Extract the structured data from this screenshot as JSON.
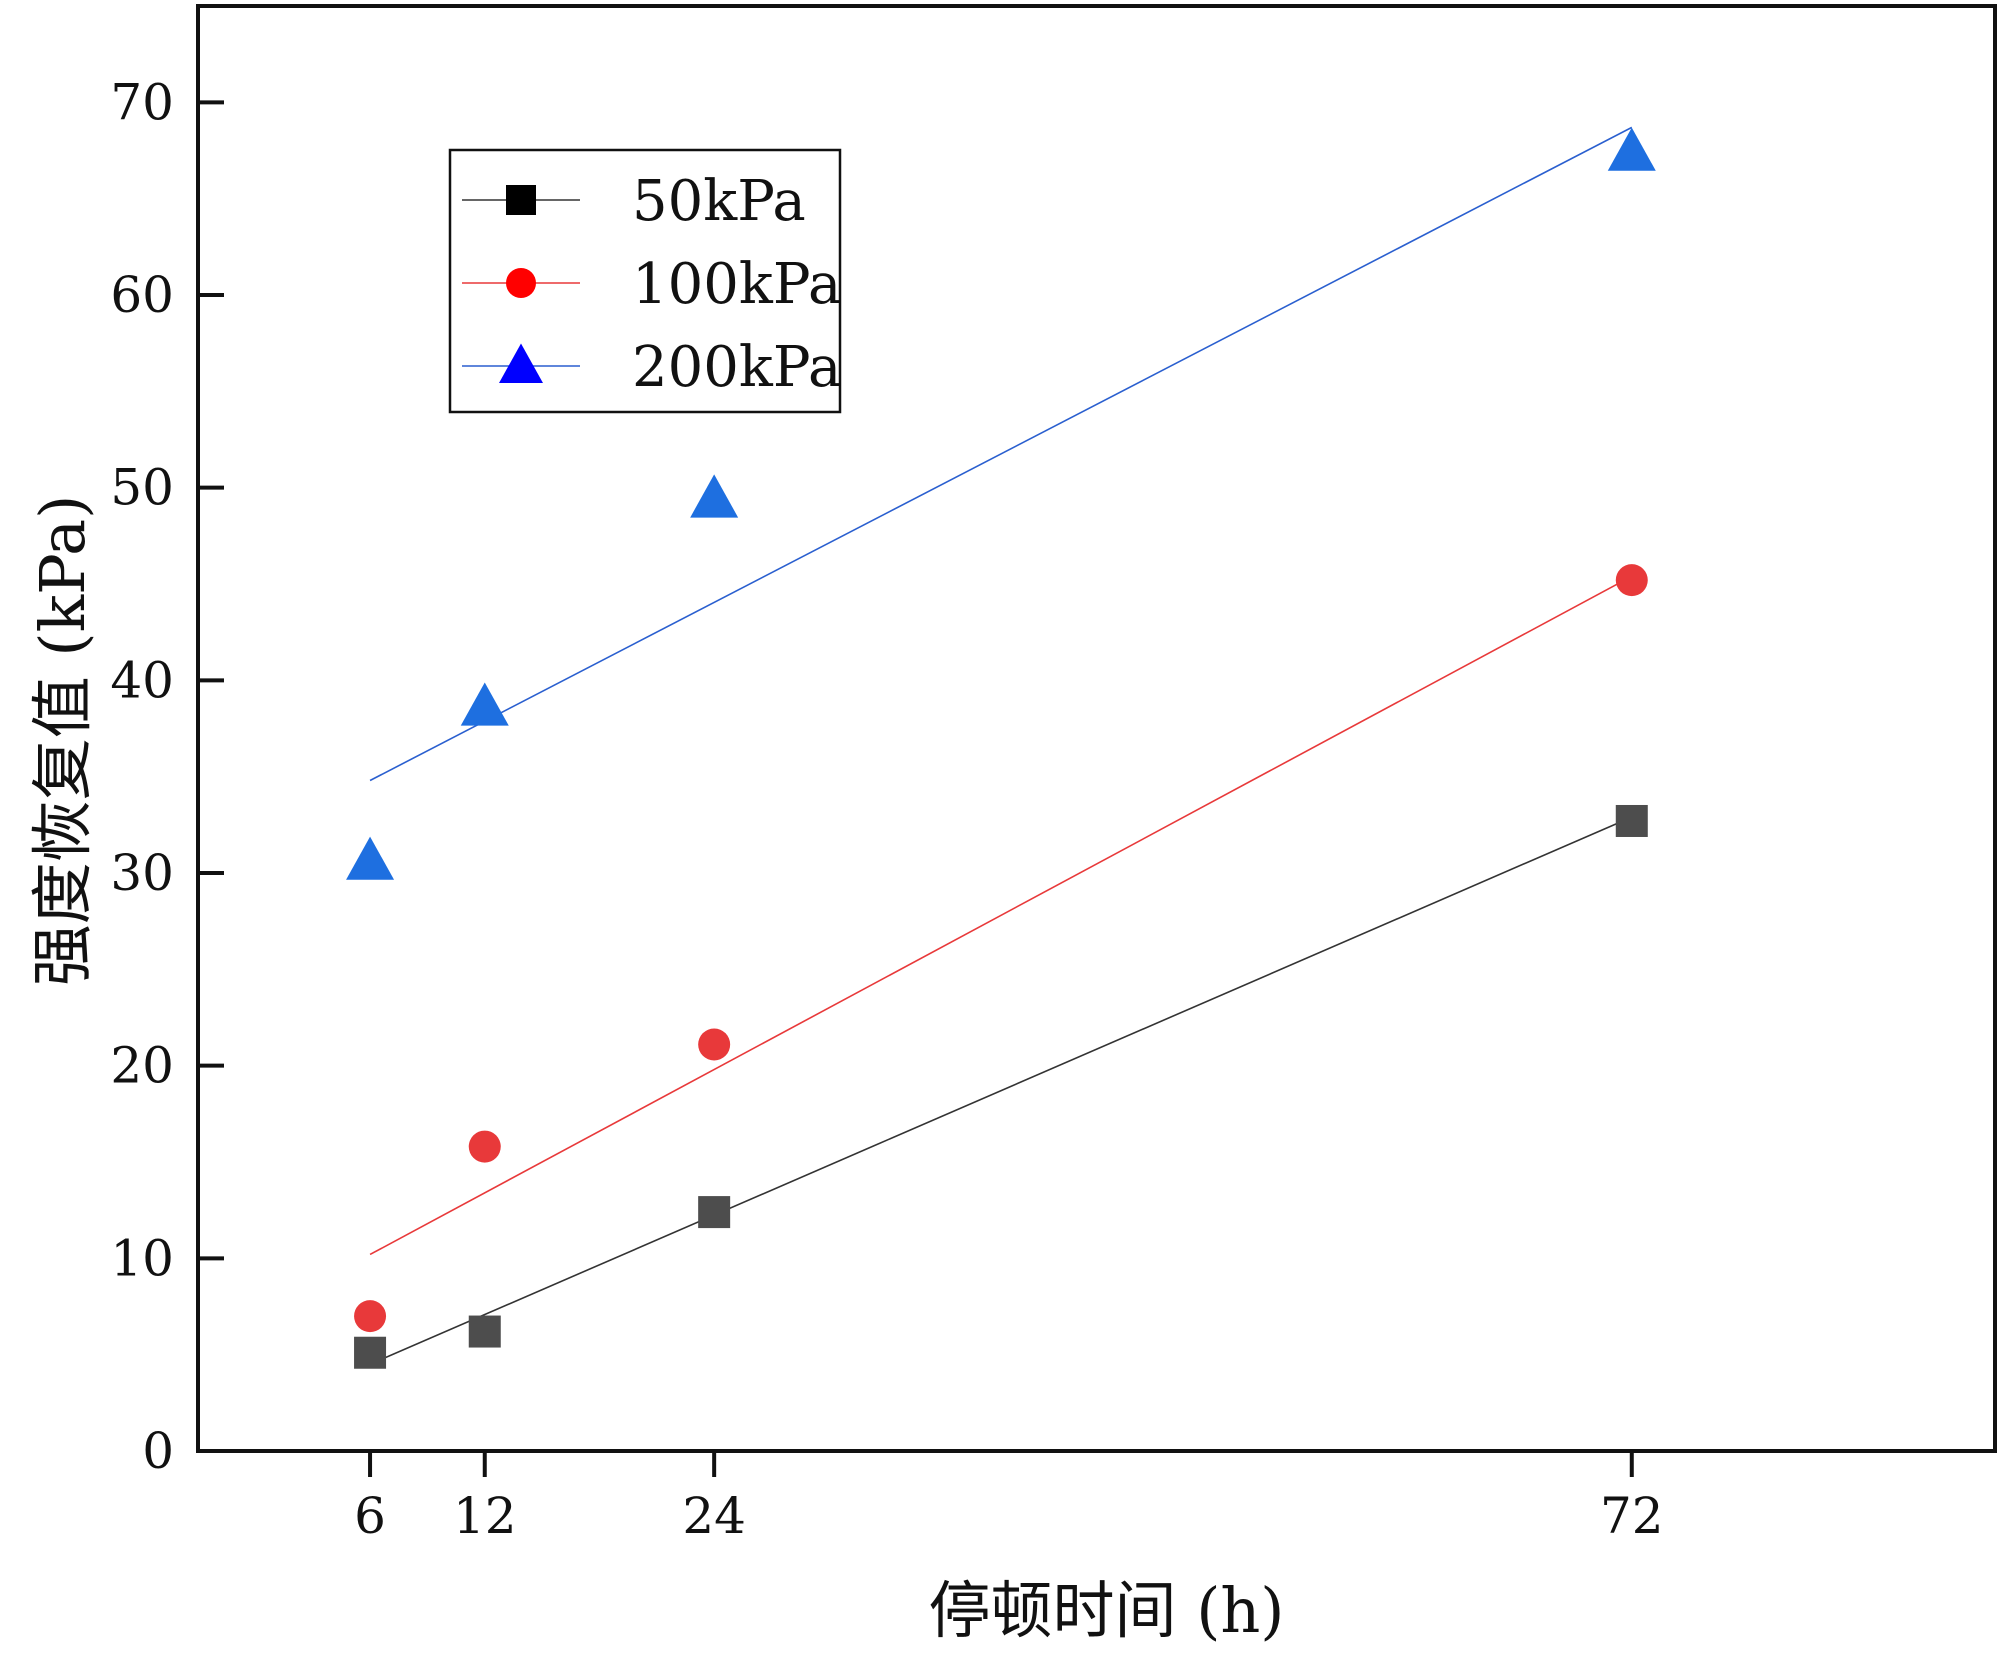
{
  "chart_data": {
    "type": "scatter",
    "title": "",
    "xlabel": "停顿时间 (h)",
    "ylabel": "强度恢复值 (kPa)",
    "xlim": [
      -3,
      91
    ],
    "ylim": [
      0,
      75
    ],
    "x": [
      6,
      12,
      24,
      72
    ],
    "x_ticks": [
      6,
      12,
      24,
      72
    ],
    "y_ticks": [
      0,
      10,
      20,
      30,
      40,
      50,
      60,
      70
    ],
    "legend_position": "top-left",
    "series": [
      {
        "name": "50kPa",
        "values": [
          5.1,
          6.2,
          12.4,
          32.7
        ],
        "fit": [
          4.5,
          32.9
        ],
        "marker": "square",
        "marker_color": "#4d4d4d",
        "legend_marker_color": "#000000",
        "line_color": "#333333"
      },
      {
        "name": "100kPa",
        "values": [
          7.0,
          15.8,
          21.1,
          45.2
        ],
        "fit": [
          10.2,
          45.4
        ],
        "marker": "circle",
        "marker_color": "#e8393a",
        "legend_marker_color": "#ff0000",
        "line_color": "#e8393a"
      },
      {
        "name": "200kPa",
        "values": [
          30.5,
          38.5,
          49.3,
          67.3
        ],
        "fit": [
          34.8,
          68.7
        ],
        "marker": "triangle",
        "marker_color": "#1e6fe0",
        "legend_marker_color": "#0000ff",
        "line_color": "#2a5fcf"
      }
    ]
  }
}
